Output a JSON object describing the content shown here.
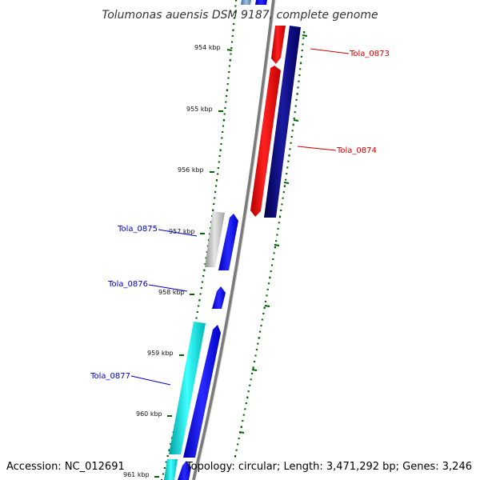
{
  "title": "Tolumonas auensis DSM 9187, complete genome",
  "accession_line": "Accession: NC_012691",
  "summary_line": "Topology: circular; Length: 3,471,292 bp; Genes: 3,246",
  "colors": {
    "backbone": "#808080",
    "tick": "#006400",
    "label_red": "#d40000",
    "label_blue": "#0000c0",
    "gene_red": "#ff0000",
    "gene_navy": "#000080",
    "gene_blue": "#0000ff",
    "gene_gray": "#b4b4b4",
    "gene_cyan": "#00e6e6",
    "gene_steel": "#4682b4"
  },
  "kbp_ticks": [
    {
      "label": "954 kbp"
    },
    {
      "label": "955 kbp"
    },
    {
      "label": "956 kbp"
    },
    {
      "label": "957 kbp"
    },
    {
      "label": "958 kbp"
    },
    {
      "label": "959 kbp"
    },
    {
      "label": "960 kbp"
    },
    {
      "label": "961 kbp"
    }
  ],
  "genes": [
    {
      "name": "Tola_0873",
      "color_key": "label_red"
    },
    {
      "name": "Tola_0874",
      "color_key": "label_red"
    },
    {
      "name": "Tola_0875",
      "color_key": "label_blue"
    },
    {
      "name": "Tola_0876",
      "color_key": "label_blue"
    },
    {
      "name": "Tola_0877",
      "color_key": "label_blue"
    }
  ]
}
